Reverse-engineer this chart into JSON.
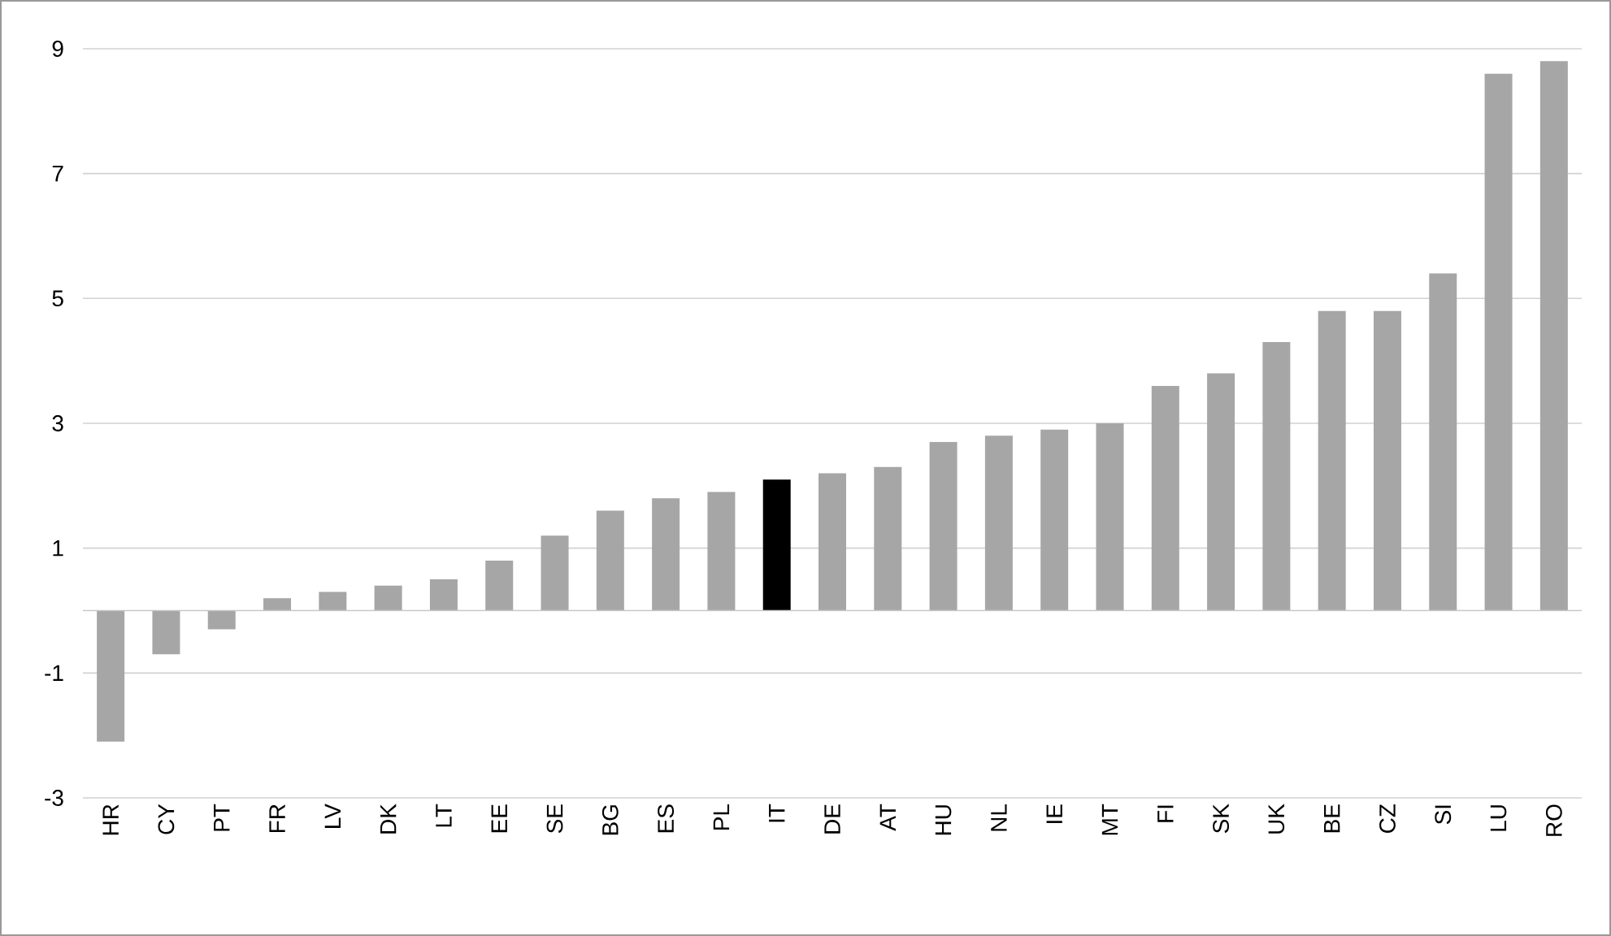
{
  "chart_data": {
    "type": "bar",
    "categories": [
      "HR",
      "CY",
      "PT",
      "FR",
      "LV",
      "DK",
      "LT",
      "EE",
      "SE",
      "BG",
      "ES",
      "PL",
      "IT",
      "DE",
      "AT",
      "HU",
      "NL",
      "IE",
      "MT",
      "FI",
      "SK",
      "UK",
      "BE",
      "CZ",
      "SI",
      "LU",
      "RO"
    ],
    "values": [
      -2.1,
      -0.7,
      -0.3,
      0.2,
      0.3,
      0.4,
      0.5,
      0.8,
      1.2,
      1.6,
      1.8,
      1.9,
      2.1,
      2.2,
      2.3,
      2.7,
      2.8,
      2.9,
      3.0,
      3.6,
      3.8,
      4.3,
      4.8,
      4.8,
      5.4,
      8.6,
      8.8
    ],
    "colors": [
      "#a6a6a6",
      "#a6a6a6",
      "#a6a6a6",
      "#a6a6a6",
      "#a6a6a6",
      "#a6a6a6",
      "#a6a6a6",
      "#a6a6a6",
      "#a6a6a6",
      "#a6a6a6",
      "#a6a6a6",
      "#a6a6a6",
      "#000000",
      "#a6a6a6",
      "#a6a6a6",
      "#a6a6a6",
      "#a6a6a6",
      "#a6a6a6",
      "#a6a6a6",
      "#a6a6a6",
      "#a6a6a6",
      "#a6a6a6",
      "#a6a6a6",
      "#a6a6a6",
      "#a6a6a6",
      "#a6a6a6",
      "#a6a6a6"
    ],
    "ylim": [
      -3,
      9
    ],
    "yticks": [
      -3,
      -1,
      1,
      3,
      5,
      7,
      9
    ],
    "grid": "y"
  }
}
